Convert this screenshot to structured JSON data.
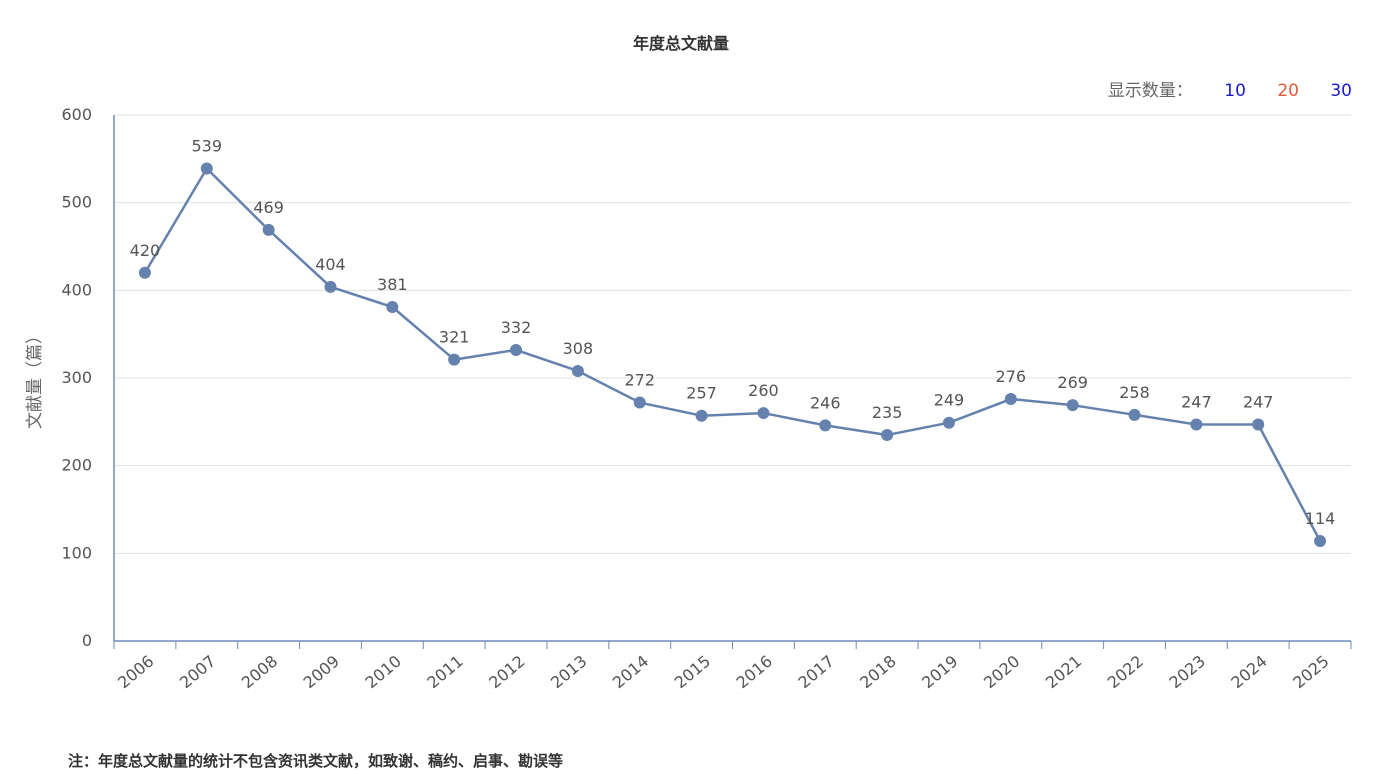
{
  "chart_data": {
    "type": "line",
    "title": "年度总文献量",
    "ylabel": "文献量（篇）",
    "xlabel": "",
    "ylim": [
      0,
      600
    ],
    "yticks": [
      0,
      100,
      200,
      300,
      400,
      500,
      600
    ],
    "grid": true,
    "categories": [
      "2006",
      "2007",
      "2008",
      "2009",
      "2010",
      "2011",
      "2012",
      "2013",
      "2014",
      "2015",
      "2016",
      "2017",
      "2018",
      "2019",
      "2020",
      "2021",
      "2022",
      "2023",
      "2024",
      "2025"
    ],
    "series": [
      {
        "values": [
          420,
          539,
          469,
          404,
          381,
          321,
          332,
          308,
          272,
          257,
          260,
          246,
          235,
          249,
          276,
          269,
          258,
          247,
          247,
          114
        ],
        "color": "#6482ad"
      }
    ]
  },
  "controls": {
    "label": "显示数量：",
    "options": [
      "10",
      "20",
      "30"
    ]
  },
  "note": "注：年度总文献量的统计不包含资讯类文献，如致谢、稿约、启事、勘误等"
}
